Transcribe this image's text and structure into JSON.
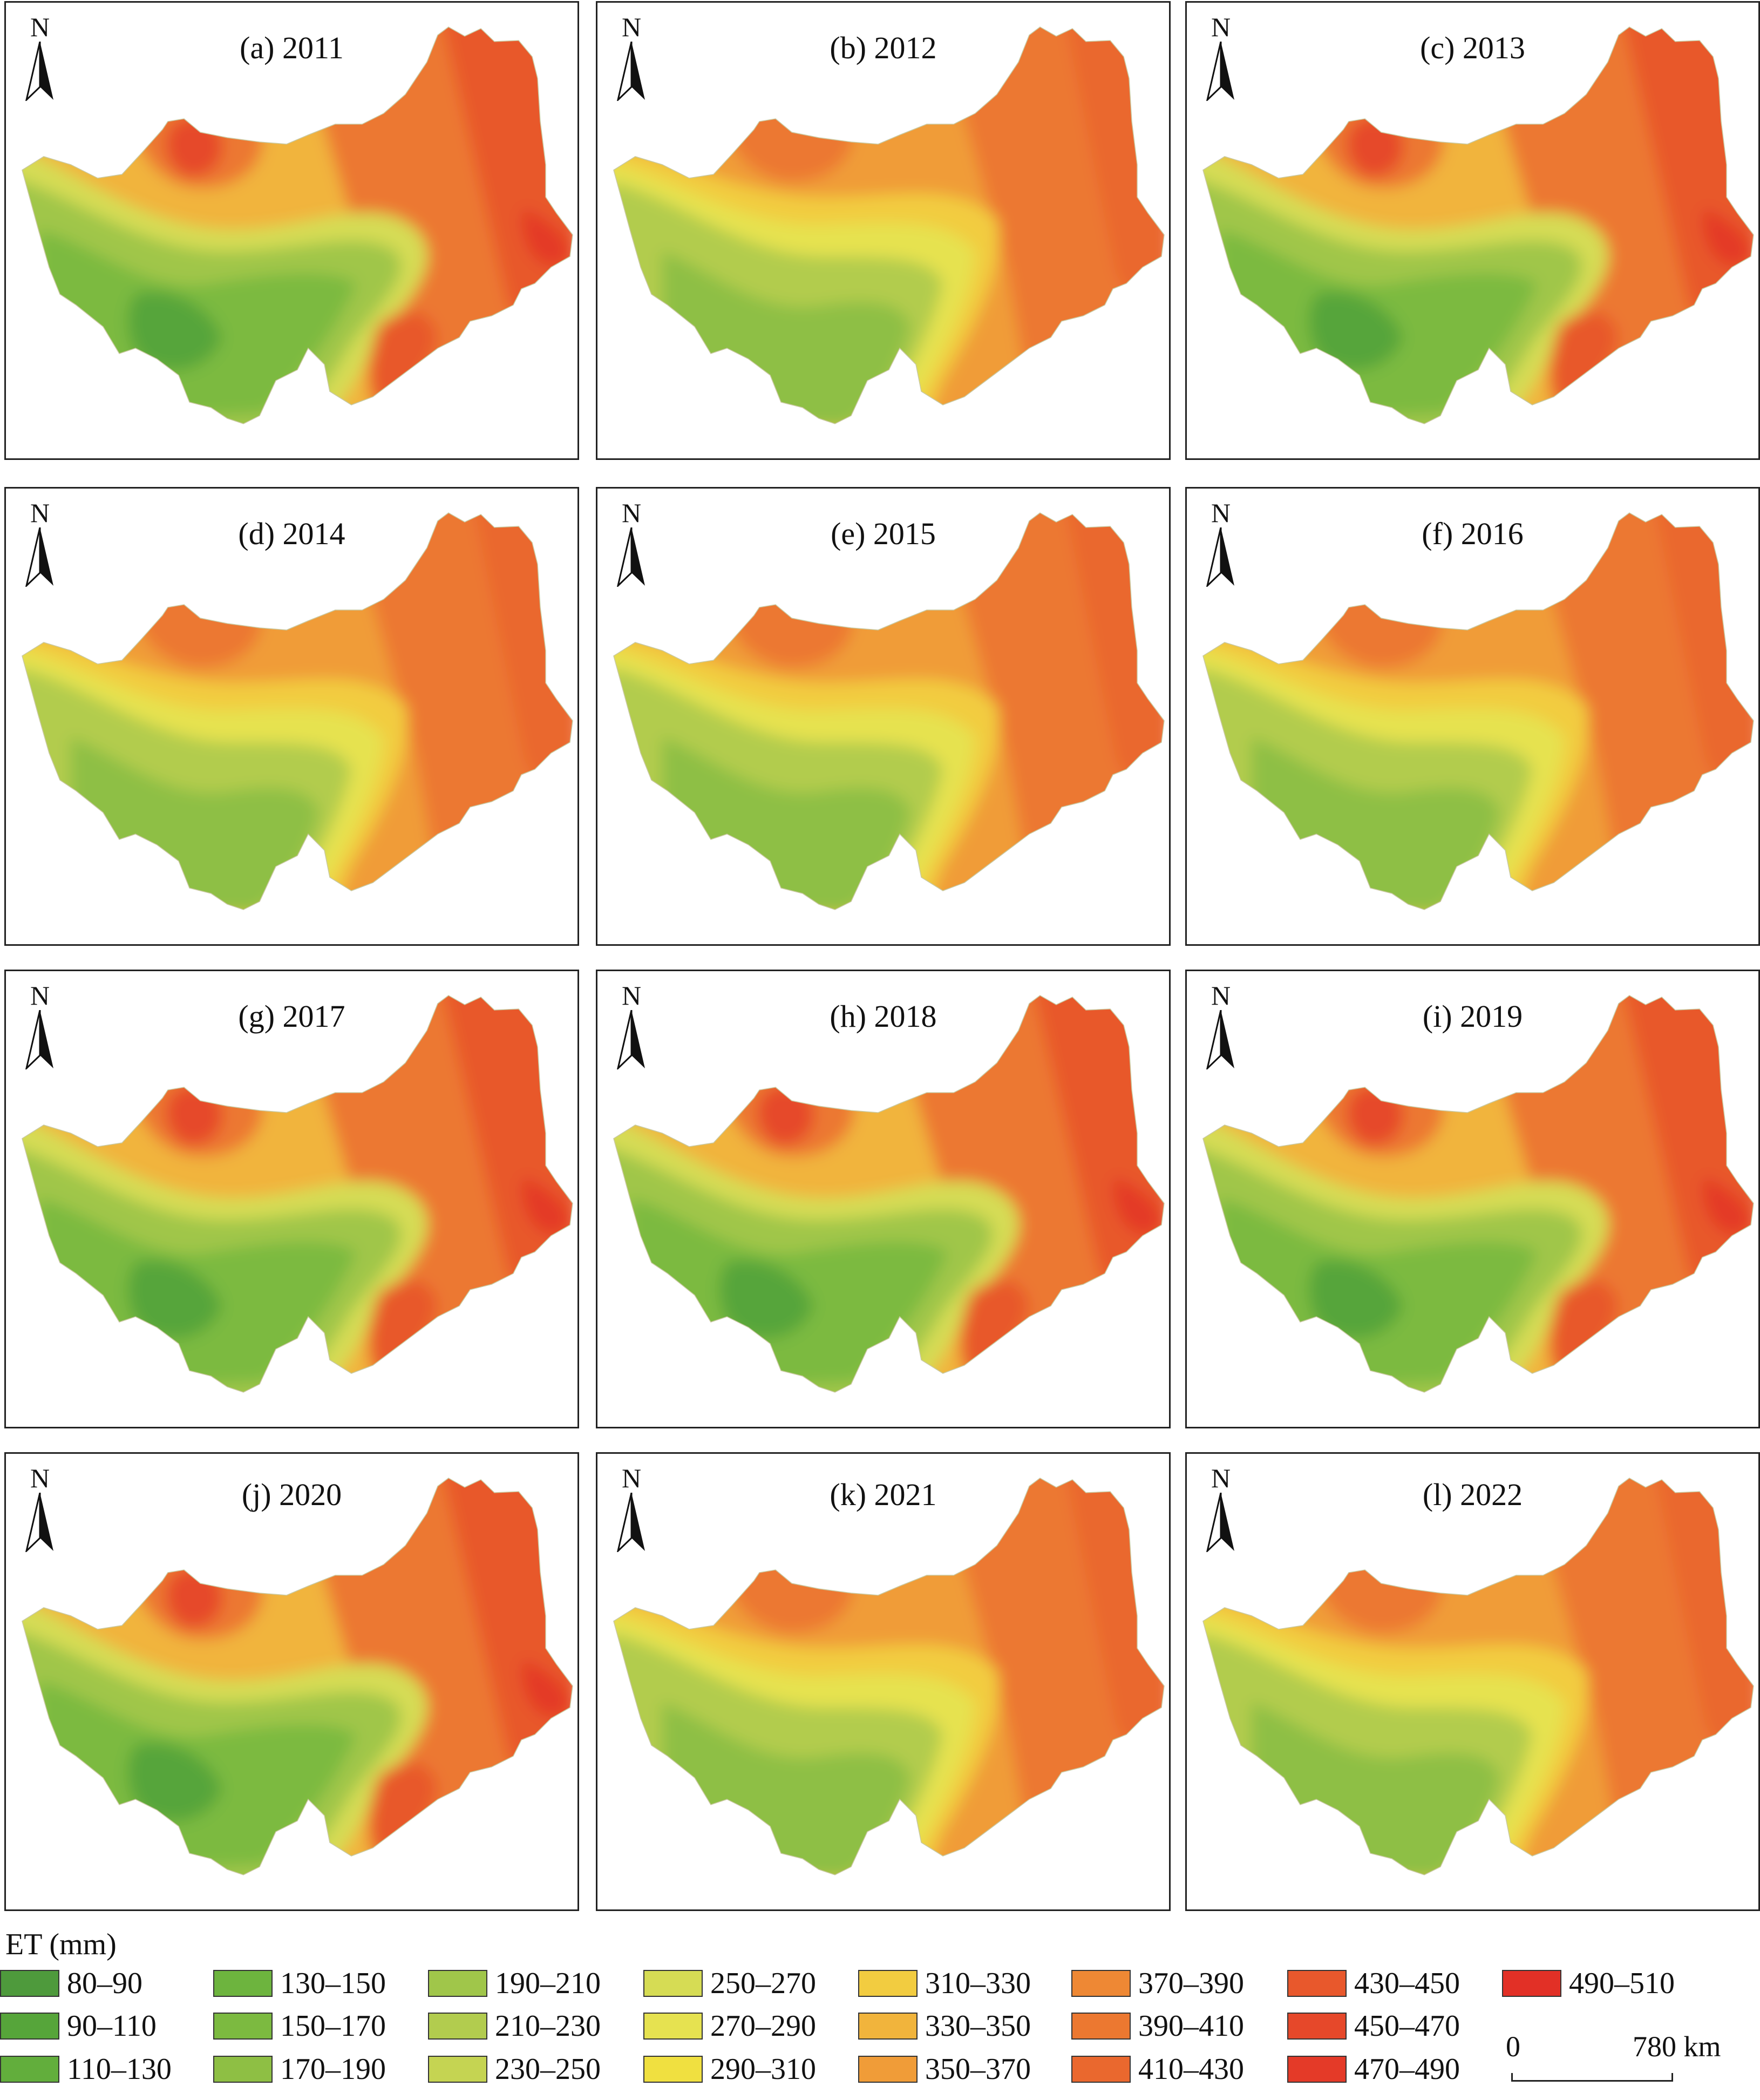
{
  "north_label": "N",
  "panels": [
    {
      "label": "(a)  2011",
      "pattern": "strong"
    },
    {
      "label": "(b) 2012",
      "pattern": "mild"
    },
    {
      "label": "(c) 2013",
      "pattern": "strong"
    },
    {
      "label": "(d) 2014",
      "pattern": "mild"
    },
    {
      "label": "(e) 2015",
      "pattern": "mild"
    },
    {
      "label": "(f) 2016",
      "pattern": "mild"
    },
    {
      "label": "(g) 2017",
      "pattern": "strong"
    },
    {
      "label": "(h) 2018",
      "pattern": "strong"
    },
    {
      "label": "(i) 2019",
      "pattern": "strong"
    },
    {
      "label": "(j) 2020",
      "pattern": "strong"
    },
    {
      "label": "(k) 2021",
      "pattern": "mild"
    },
    {
      "label": "(l) 2022",
      "pattern": "mild"
    }
  ],
  "legend": {
    "title": "ET (mm)",
    "items": [
      {
        "label": "80–90",
        "color": "#4e9a3c"
      },
      {
        "label": "90–110",
        "color": "#56a53a"
      },
      {
        "label": "110–130",
        "color": "#62ae3c"
      },
      {
        "label": "130–150",
        "color": "#6db43e"
      },
      {
        "label": "150–170",
        "color": "#7cba40"
      },
      {
        "label": "170–190",
        "color": "#8ebf44"
      },
      {
        "label": "190–210",
        "color": "#a0c64a"
      },
      {
        "label": "210–230",
        "color": "#b2cc4e"
      },
      {
        "label": "230–250",
        "color": "#c5d452"
      },
      {
        "label": "250–270",
        "color": "#d6dc54"
      },
      {
        "label": "270–290",
        "color": "#e6e250"
      },
      {
        "label": "290–310",
        "color": "#f0e040"
      },
      {
        "label": "310–330",
        "color": "#f2cc40"
      },
      {
        "label": "330–350",
        "color": "#f1b43c"
      },
      {
        "label": "350–370",
        "color": "#f09c38"
      },
      {
        "label": "370–390",
        "color": "#ee8834"
      },
      {
        "label": "390–410",
        "color": "#ec7830"
      },
      {
        "label": "410–430",
        "color": "#ea682e"
      },
      {
        "label": "430–450",
        "color": "#e8582c"
      },
      {
        "label": "450–470",
        "color": "#e6482a"
      },
      {
        "label": "470–490",
        "color": "#e43a28"
      },
      {
        "label": "490–510",
        "color": "#e23026"
      }
    ]
  },
  "scale_bar": {
    "start": "0",
    "end": "780 km"
  }
}
